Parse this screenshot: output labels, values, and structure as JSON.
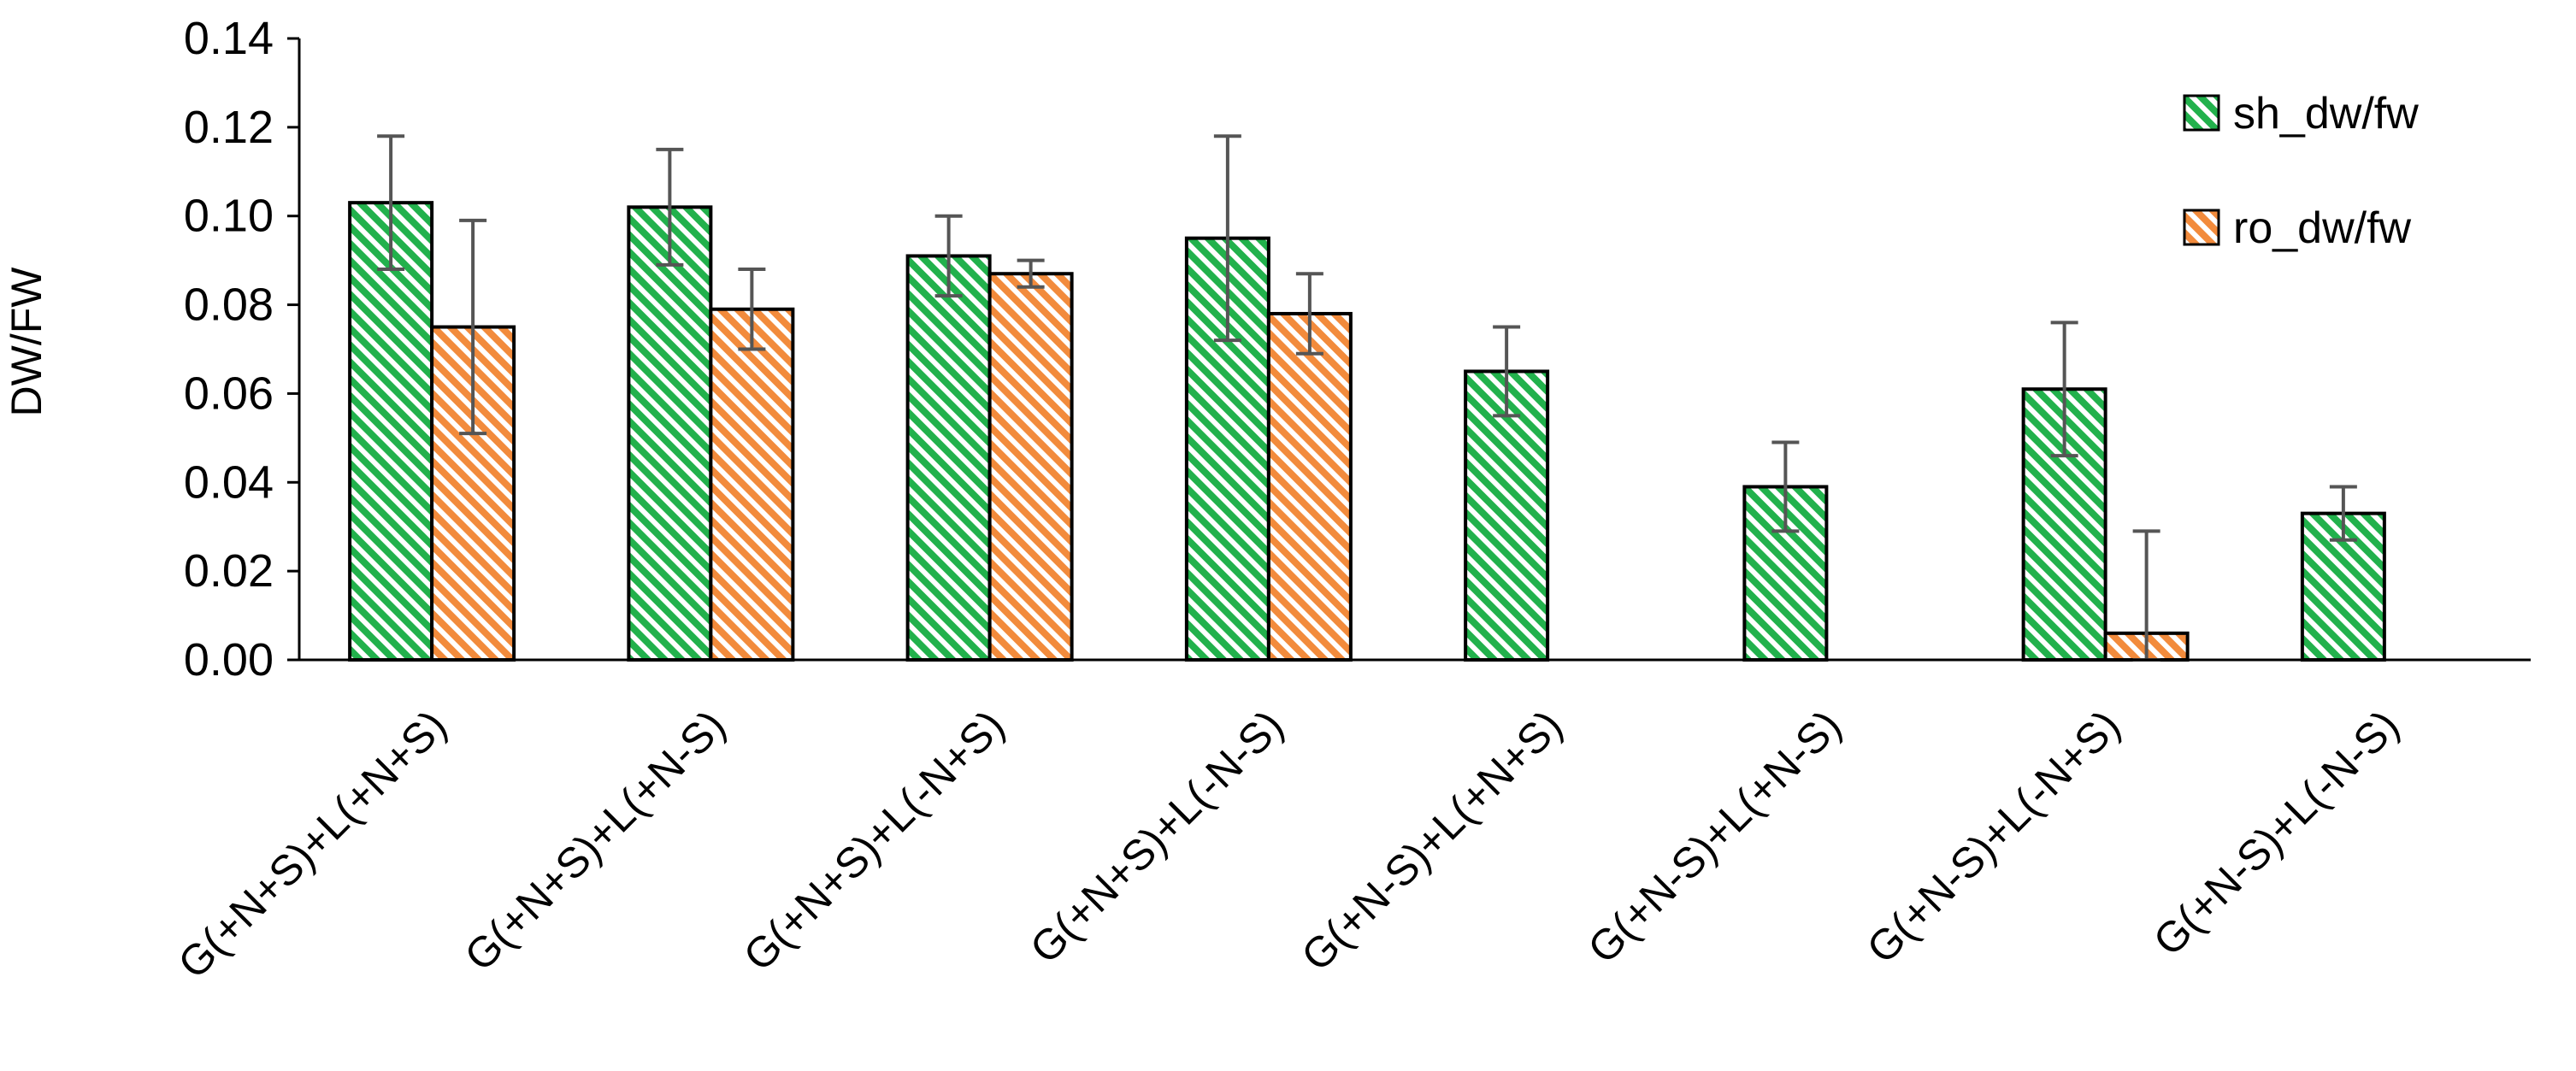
{
  "chart_data": {
    "type": "bar",
    "title": "",
    "xlabel": "",
    "ylabel": "DW/FW",
    "ylim": [
      0,
      0.14
    ],
    "yticks": [
      "0.00",
      "0.02",
      "0.04",
      "0.06",
      "0.08",
      "0.10",
      "0.12",
      "0.14"
    ],
    "grid": false,
    "legend_position": "top-right",
    "categories": [
      "G(+N+S)+L(+N+S)",
      "G(+N+S)+L(+N-S)",
      "G(+N+S)+L(-N+S)",
      "G(+N+S)+L(-N-S)",
      "G(+N-S)+L(+N+S)",
      "G(+N-S)+L(+N-S)",
      "G(+N-S)+L(-N+S)",
      "G(+N-S)+L(-N-S)"
    ],
    "series": [
      {
        "name": "sh_dw/fw",
        "color": "#22b14c",
        "values": [
          0.103,
          0.102,
          0.091,
          0.095,
          0.065,
          0.039,
          0.061,
          0.033
        ],
        "errors": [
          0.015,
          0.013,
          0.009,
          0.023,
          0.01,
          0.01,
          0.015,
          0.006
        ]
      },
      {
        "name": "ro_dw/fw",
        "color": "#f28b3c",
        "values": [
          0.075,
          0.079,
          0.087,
          0.078,
          null,
          null,
          0.006,
          null
        ],
        "errors": [
          0.024,
          0.009,
          0.003,
          0.009,
          null,
          null,
          0.023,
          null
        ]
      }
    ]
  }
}
